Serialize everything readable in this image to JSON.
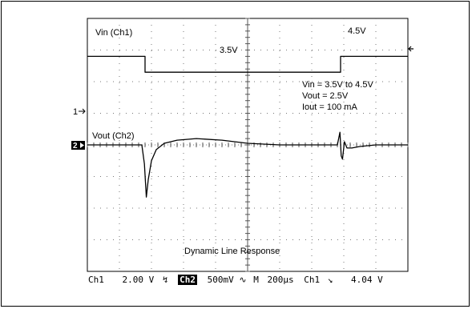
{
  "chart_data": {
    "type": "line",
    "title": "Dynamic Line Response",
    "xlabel": "",
    "ylabel": "",
    "grid": true,
    "xlim_divisions": [
      0,
      10
    ],
    "ylim_divisions": [
      -4,
      4
    ],
    "series": [
      {
        "name": "Vin (Ch1)",
        "color": "#000000",
        "x": [
          0,
          1.8,
          1.8,
          7.9,
          7.9,
          10
        ],
        "y": [
          2.8,
          2.8,
          2.3,
          2.3,
          2.8,
          2.8
        ]
      },
      {
        "name": "Vout (Ch2)",
        "color": "#000000",
        "x": [
          0,
          1.7,
          1.78,
          1.84,
          1.9,
          2.0,
          2.15,
          2.4,
          2.8,
          3.4,
          4.2,
          5.0,
          6.0,
          7.0,
          7.8,
          7.88,
          7.92,
          7.96,
          8.02,
          8.1,
          8.25,
          8.5,
          9.0,
          9.6,
          10
        ],
        "y": [
          0.0,
          0.0,
          -0.6,
          -1.65,
          -1.1,
          -0.5,
          -0.15,
          0.05,
          0.15,
          0.2,
          0.15,
          0.05,
          0.0,
          0.0,
          0.0,
          0.4,
          -0.35,
          -0.45,
          0.1,
          -0.1,
          -0.1,
          -0.05,
          0.0,
          0.0,
          0.0
        ]
      }
    ],
    "annotations": {
      "vin_high": "4.5V",
      "vin_low": "3.5V",
      "conditions": [
        "Vin = 3.5V to 4.5V",
        "Vout = 2.5V",
        "Iout = 100 mA"
      ]
    },
    "markers": {
      "ch1_ground": "1",
      "ch2_ground": "2"
    }
  },
  "status_bar": {
    "ch1_label": "Ch1",
    "ch1_scale": "2.00 V",
    "ch1_coupling": "↯",
    "ch2_label": "Ch2",
    "ch2_scale": "500mV",
    "ch2_bw": "∿",
    "timebase_label": "M",
    "timebase": "200µs",
    "trigger_source": "Ch1",
    "trigger_slope": "↘",
    "trigger_level": "4.04 V"
  }
}
